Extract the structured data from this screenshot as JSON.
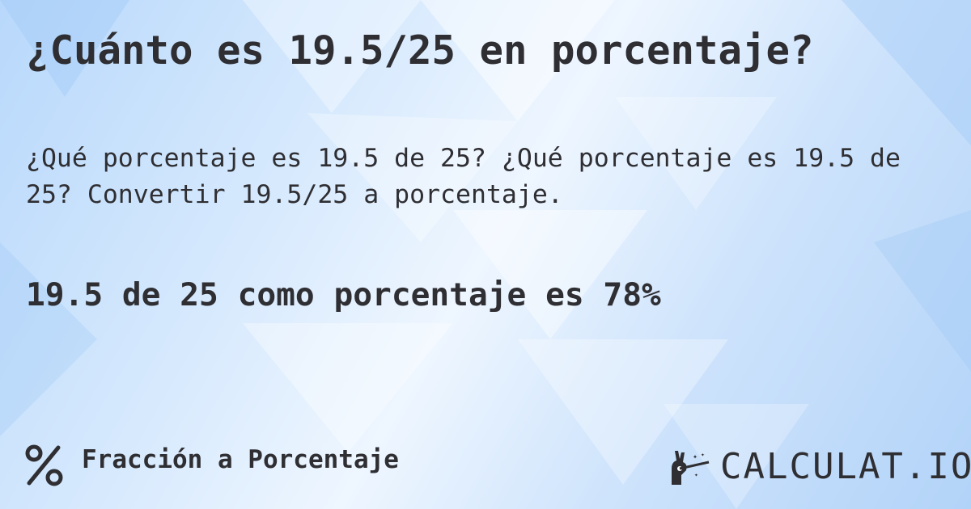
{
  "title": "¿Cuánto es 19.5/25 en porcentaje?",
  "description": "¿Qué porcentaje es 19.5 de 25? ¿Qué porcentaje es 19.5 de 25? Convertir 19.5/25 a porcentaje.",
  "answer": "19.5 de 25 como porcentaje es 78%",
  "footer": {
    "icon": "percent-icon",
    "label": "Fracción a Porcentaje"
  },
  "logo": {
    "text": "CALCULAT.IO",
    "icon": "magic-wand-hand-icon"
  },
  "colors": {
    "text": "#2f2f33",
    "background": "#cfe4fc"
  }
}
